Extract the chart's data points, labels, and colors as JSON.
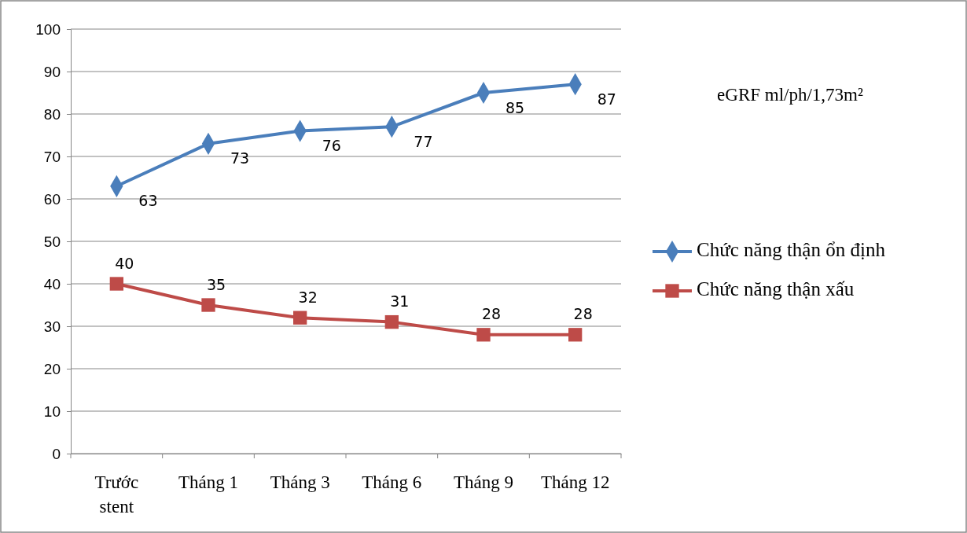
{
  "chart_data": {
    "type": "line",
    "categories": [
      "Trước stent",
      "Tháng 1",
      "Tháng 3",
      "Tháng 6",
      "Tháng 9",
      "Tháng 12"
    ],
    "series": [
      {
        "name": "Chức năng thận ổn định",
        "color": "#4a7ebb",
        "marker": "diamond",
        "values": [
          63,
          73,
          76,
          77,
          85,
          87
        ]
      },
      {
        "name": "Chức năng thận xấu",
        "color": "#be4b48",
        "marker": "square",
        "values": [
          40,
          35,
          32,
          31,
          28,
          28
        ]
      }
    ],
    "ylim": [
      0,
      100
    ],
    "yticks": [
      0,
      10,
      20,
      30,
      40,
      50,
      60,
      70,
      80,
      90,
      100
    ],
    "grid": "y",
    "legend": "right",
    "data_labels": true,
    "annotations": [
      "eGRF ml/ph/1,73m²"
    ]
  }
}
